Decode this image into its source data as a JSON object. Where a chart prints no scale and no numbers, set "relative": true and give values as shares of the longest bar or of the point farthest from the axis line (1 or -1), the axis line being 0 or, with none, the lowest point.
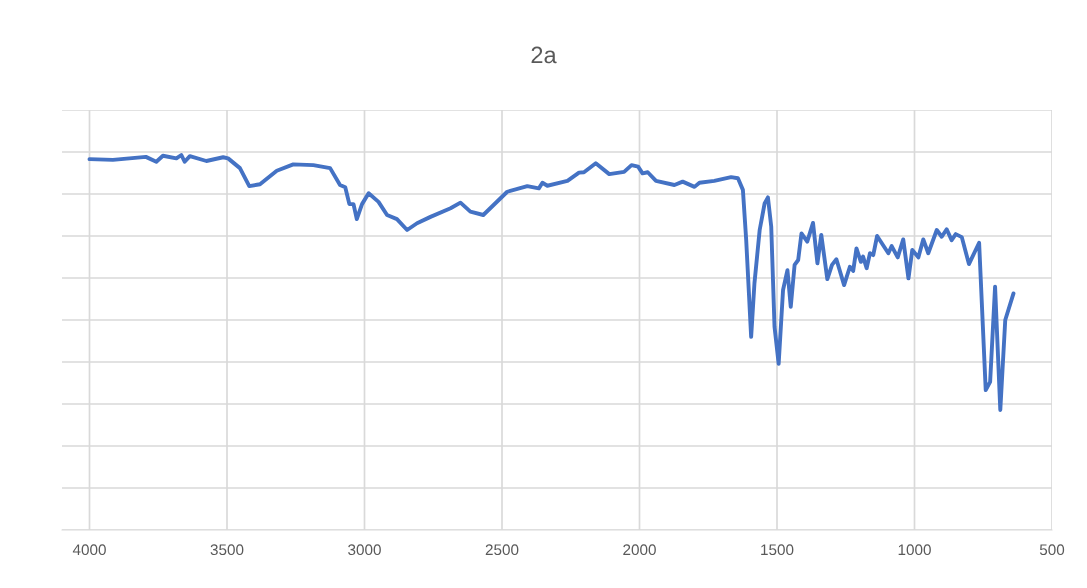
{
  "chart_data": {
    "type": "line",
    "title": "2a",
    "relative": true,
    "grid": true,
    "xlim": [
      4100,
      500
    ],
    "xticks": [
      4000,
      3500,
      3000,
      2500,
      2000,
      1500,
      1000,
      500
    ],
    "x": [
      4000,
      3915,
      3795,
      3757,
      3733,
      3684,
      3666,
      3654,
      3635,
      3575,
      3514,
      3496,
      3453,
      3419,
      3380,
      3319,
      3259,
      3186,
      3125,
      3089,
      3070,
      3055,
      3040,
      3028,
      3009,
      2985,
      2949,
      2918,
      2882,
      2845,
      2809,
      2760,
      2687,
      2651,
      2615,
      2568,
      2481,
      2408,
      2366,
      2353,
      2335,
      2262,
      2220,
      2202,
      2159,
      2110,
      2056,
      2029,
      2005,
      1989,
      1970,
      1940,
      1873,
      1843,
      1800,
      1782,
      1728,
      1667,
      1642,
      1624,
      1612,
      1594,
      1582,
      1563,
      1545,
      1533,
      1521,
      1509,
      1494,
      1478,
      1462,
      1450,
      1436,
      1423,
      1411,
      1390,
      1369,
      1353,
      1339,
      1317,
      1300,
      1284,
      1256,
      1235,
      1223,
      1211,
      1195,
      1187,
      1174,
      1162,
      1150,
      1136,
      1095,
      1083,
      1061,
      1041,
      1022,
      1008,
      986,
      968,
      950,
      919,
      901,
      883,
      865,
      850,
      828,
      802,
      765,
      741,
      725,
      707,
      688,
      670,
      640
    ],
    "series": [
      {
        "color": "#4472c4",
        "values": [
          0.989,
          0.987,
          0.995,
          0.982,
          0.998,
          0.991,
          1.0,
          0.982,
          0.997,
          0.984,
          0.994,
          0.991,
          0.965,
          0.917,
          0.922,
          0.958,
          0.975,
          0.973,
          0.965,
          0.92,
          0.914,
          0.869,
          0.869,
          0.829,
          0.869,
          0.898,
          0.875,
          0.84,
          0.829,
          0.8,
          0.818,
          0.835,
          0.858,
          0.873,
          0.849,
          0.84,
          0.902,
          0.917,
          0.911,
          0.926,
          0.918,
          0.931,
          0.953,
          0.954,
          0.978,
          0.949,
          0.955,
          0.973,
          0.969,
          0.951,
          0.954,
          0.931,
          0.92,
          0.929,
          0.915,
          0.926,
          0.931,
          0.941,
          0.938,
          0.907,
          0.773,
          0.515,
          0.658,
          0.8,
          0.871,
          0.887,
          0.809,
          0.542,
          0.443,
          0.64,
          0.693,
          0.595,
          0.707,
          0.72,
          0.791,
          0.769,
          0.819,
          0.711,
          0.787,
          0.669,
          0.707,
          0.722,
          0.653,
          0.702,
          0.691,
          0.751,
          0.715,
          0.729,
          0.698,
          0.738,
          0.733,
          0.784,
          0.738,
          0.757,
          0.727,
          0.775,
          0.671,
          0.747,
          0.727,
          0.775,
          0.738,
          0.8,
          0.782,
          0.802,
          0.773,
          0.789,
          0.781,
          0.709,
          0.766,
          0.373,
          0.395,
          0.649,
          0.32,
          0.56,
          0.631
        ]
      }
    ]
  }
}
